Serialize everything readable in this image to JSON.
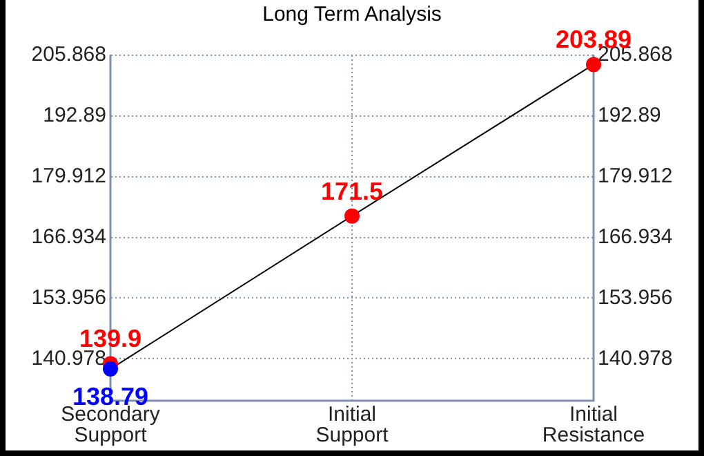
{
  "chart_data": {
    "type": "line",
    "title": "Long Term Analysis",
    "categories": [
      "Secondary\nSupport",
      "Initial\nSupport",
      "Initial\nResistance"
    ],
    "series": [
      {
        "color": "#000000",
        "marker": "none",
        "values": [
          138.79,
          171.5,
          203.89
        ]
      },
      {
        "type": "scatter",
        "color": "#ff0000",
        "marker": "circle",
        "values": [
          139.9,
          171.5,
          203.89
        ],
        "value_labels": [
          "139.9",
          "171.5",
          "203.89"
        ]
      },
      {
        "type": "scatter",
        "color": "#0000ff",
        "marker": "circle",
        "values": [
          138.79,
          null,
          null
        ],
        "value_labels": [
          "138.79",
          null,
          null
        ]
      }
    ],
    "ylim": [
      132,
      205.868
    ],
    "yticks": [
      140.978,
      153.956,
      166.934,
      179.912,
      192.89,
      205.868
    ],
    "y2lim": [
      132,
      205.868
    ],
    "y2ticks": [
      140.978,
      153.956,
      166.934,
      179.912,
      192.89,
      205.868
    ],
    "grid": true,
    "legend": false
  }
}
